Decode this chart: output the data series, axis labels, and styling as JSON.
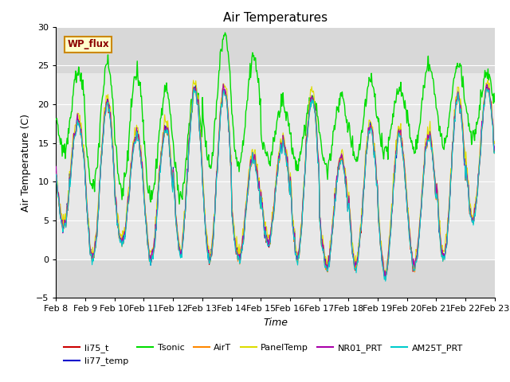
{
  "title": "Air Temperatures",
  "xlabel": "Time",
  "ylabel": "Air Temperature (C)",
  "xlim_days": [
    8,
    23
  ],
  "ylim": [
    -5,
    30
  ],
  "yticks": [
    -5,
    0,
    5,
    10,
    15,
    20,
    25,
    30
  ],
  "xtick_labels": [
    "Feb 8",
    "Feb 9",
    "Feb 10",
    "Feb 11",
    "Feb 12",
    "Feb 13",
    "Feb 14",
    "Feb 15",
    "Feb 16",
    "Feb 17",
    "Feb 18",
    "Feb 19",
    "Feb 20",
    "Feb 21",
    "Feb 22",
    "Feb 23"
  ],
  "series_colors": {
    "li75_t": "#cc0000",
    "li77_temp": "#0000cc",
    "Tsonic": "#00dd00",
    "AirT": "#ff8800",
    "PanelTemp": "#dddd00",
    "NR01_PRT": "#aa00aa",
    "AM25T_PRT": "#00cccc"
  },
  "legend_label": "WP_flux",
  "shaded_band_ymin": 0,
  "shaded_band_ymax": 24,
  "plot_bg": "#d8d8d8",
  "band_bg": "#e8e8e8"
}
